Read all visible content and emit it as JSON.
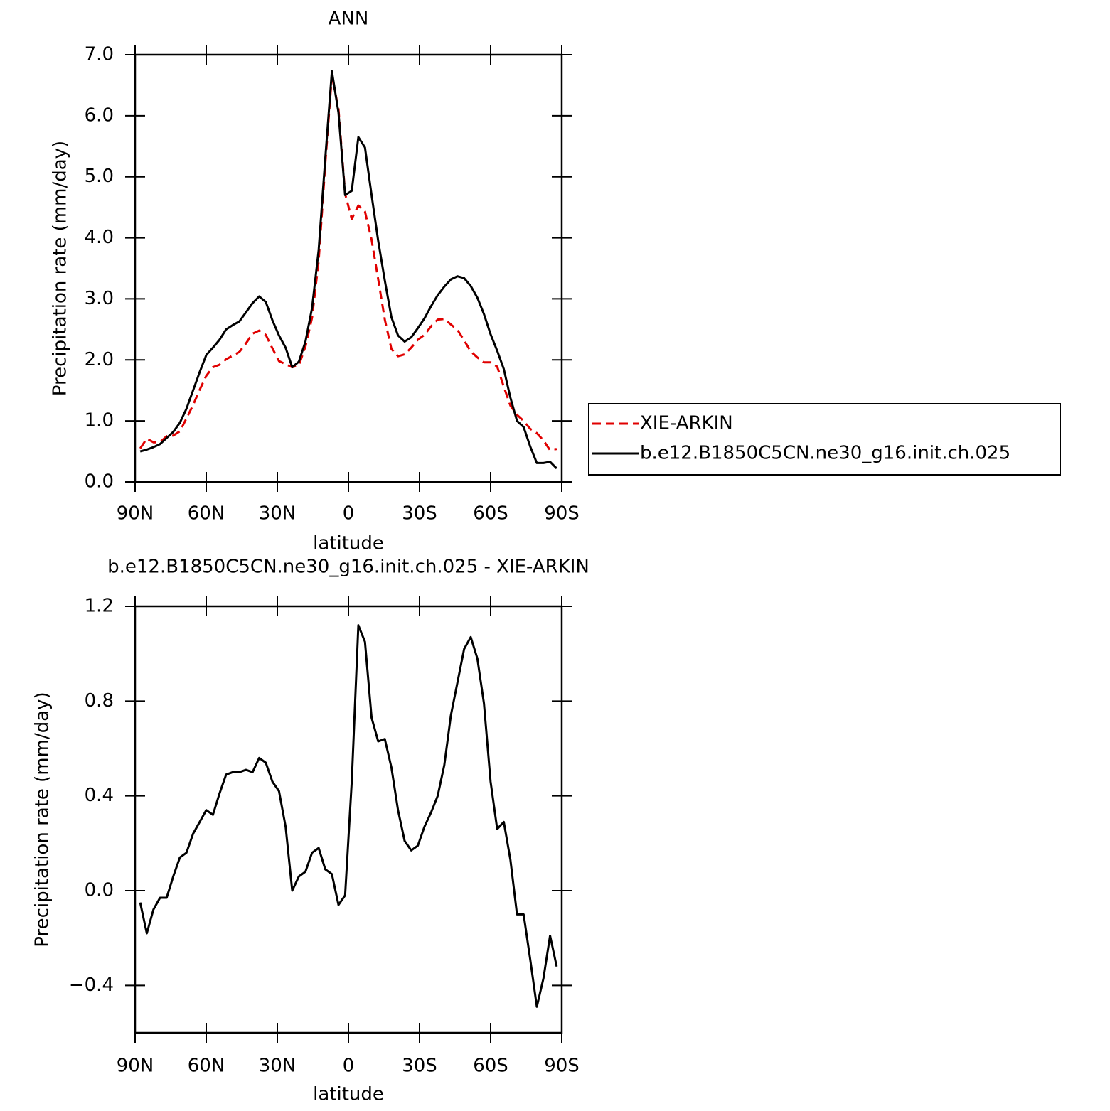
{
  "chart_data": [
    {
      "type": "line",
      "title": "ANN",
      "xlabel": "latitude",
      "ylabel": "Precipitation rate (mm/day)",
      "x": [
        87.86,
        85.07,
        82.28,
        79.49,
        76.7,
        73.91,
        71.12,
        68.34,
        65.55,
        62.76,
        59.97,
        57.18,
        54.39,
        51.6,
        48.81,
        46.02,
        43.23,
        40.45,
        37.66,
        34.87,
        32.08,
        29.29,
        26.5,
        23.71,
        20.92,
        18.13,
        15.35,
        12.56,
        9.77,
        6.98,
        4.19,
        1.4,
        -1.4,
        -4.19,
        -6.98,
        -9.77,
        -12.56,
        -15.35,
        -18.13,
        -20.92,
        -23.71,
        -26.5,
        -29.29,
        -32.08,
        -34.87,
        -37.66,
        -40.45,
        -43.23,
        -46.02,
        -48.81,
        -51.6,
        -54.39,
        -57.18,
        -59.97,
        -62.76,
        -65.55,
        -68.34,
        -71.12,
        -73.91,
        -76.7,
        -79.49,
        -82.28,
        -85.07,
        -87.86
      ],
      "series": [
        {
          "name": "XIE-ARKIN",
          "color": "#e00000",
          "linestyle": "dashed",
          "values": [
            0.55,
            0.71,
            0.65,
            0.65,
            0.75,
            0.76,
            0.83,
            1.04,
            1.26,
            1.51,
            1.74,
            1.88,
            1.92,
            2.01,
            2.07,
            2.13,
            2.27,
            2.43,
            2.48,
            2.41,
            2.19,
            1.98,
            1.93,
            1.88,
            1.91,
            2.22,
            2.69,
            3.62,
            5.21,
            6.66,
            6.11,
            4.72,
            4.31,
            4.53,
            4.43,
            3.97,
            3.32,
            2.66,
            2.18,
            2.06,
            2.09,
            2.2,
            2.33,
            2.41,
            2.55,
            2.66,
            2.67,
            2.58,
            2.49,
            2.32,
            2.14,
            2.04,
            1.96,
            1.96,
            1.89,
            1.56,
            1.25,
            1.1,
            1.0,
            0.87,
            0.8,
            0.68,
            0.52,
            0.54
          ]
        },
        {
          "name": "b.e12.B1850C5CN.ne30_g16.init.ch.025",
          "color": "#000000",
          "linestyle": "solid",
          "values": [
            0.5,
            0.53,
            0.57,
            0.62,
            0.72,
            0.82,
            0.97,
            1.2,
            1.5,
            1.8,
            2.08,
            2.2,
            2.33,
            2.5,
            2.57,
            2.63,
            2.78,
            2.93,
            3.04,
            2.95,
            2.65,
            2.4,
            2.2,
            1.88,
            1.97,
            2.3,
            2.85,
            3.8,
            5.3,
            6.73,
            6.05,
            4.7,
            4.77,
            5.65,
            5.48,
            4.7,
            3.95,
            3.3,
            2.7,
            2.4,
            2.3,
            2.37,
            2.52,
            2.68,
            2.88,
            3.06,
            3.2,
            3.32,
            3.37,
            3.34,
            3.21,
            3.02,
            2.75,
            2.42,
            2.15,
            1.85,
            1.38,
            1.0,
            0.9,
            0.58,
            0.31,
            0.31,
            0.33,
            0.22
          ]
        }
      ],
      "xlim": [
        90,
        -90
      ],
      "xticks": [
        {
          "value": 90,
          "label": "90N"
        },
        {
          "value": 60,
          "label": "60N"
        },
        {
          "value": 30,
          "label": "30N"
        },
        0,
        {
          "value": -30,
          "label": "30S"
        },
        {
          "value": -60,
          "label": "60S"
        },
        {
          "value": -90,
          "label": "90S"
        }
      ],
      "ylim": [
        0,
        7
      ],
      "yticks": [
        {
          "value": 0,
          "label": "0.0"
        },
        {
          "value": 1,
          "label": "1.0"
        },
        {
          "value": 2,
          "label": "2.0"
        },
        {
          "value": 3,
          "label": "3.0"
        },
        {
          "value": 4,
          "label": "4.0"
        },
        {
          "value": 5,
          "label": "5.0"
        },
        {
          "value": 6,
          "label": "6.0"
        },
        {
          "value": 7,
          "label": "7.0"
        }
      ],
      "legend": "right"
    },
    {
      "type": "line",
      "title": "b.e12.B1850C5CN.ne30_g16.init.ch.025 - XIE-ARKIN",
      "xlabel": "latitude",
      "ylabel": "Precipitation rate (mm/day)",
      "x": [
        87.86,
        85.07,
        82.28,
        79.49,
        76.7,
        73.91,
        71.12,
        68.34,
        65.55,
        62.76,
        59.97,
        57.18,
        54.39,
        51.6,
        48.81,
        46.02,
        43.23,
        40.45,
        37.66,
        34.87,
        32.08,
        29.29,
        26.5,
        23.71,
        20.92,
        18.13,
        15.35,
        12.56,
        9.77,
        6.98,
        4.19,
        1.4,
        -1.4,
        -4.19,
        -6.98,
        -9.77,
        -12.56,
        -15.35,
        -18.13,
        -20.92,
        -23.71,
        -26.5,
        -29.29,
        -32.08,
        -34.87,
        -37.66,
        -40.45,
        -43.23,
        -46.02,
        -48.81,
        -51.6,
        -54.39,
        -57.18,
        -59.97,
        -62.76,
        -65.55,
        -68.34,
        -71.12,
        -73.91,
        -76.7,
        -79.49,
        -82.28,
        -85.07,
        -87.86
      ],
      "color": "#000000",
      "values": [
        -0.05,
        -0.18,
        -0.08,
        -0.03,
        -0.03,
        0.06,
        0.14,
        0.16,
        0.24,
        0.29,
        0.34,
        0.32,
        0.41,
        0.49,
        0.5,
        0.5,
        0.51,
        0.5,
        0.56,
        0.54,
        0.46,
        0.42,
        0.27,
        0.0,
        0.06,
        0.08,
        0.16,
        0.18,
        0.09,
        0.07,
        -0.06,
        -0.02,
        0.46,
        1.12,
        1.05,
        0.73,
        0.63,
        0.64,
        0.52,
        0.34,
        0.21,
        0.17,
        0.19,
        0.27,
        0.33,
        0.4,
        0.53,
        0.74,
        0.88,
        1.02,
        1.07,
        0.98,
        0.79,
        0.46,
        0.26,
        0.29,
        0.13,
        -0.1,
        -0.1,
        -0.29,
        -0.49,
        -0.37,
        -0.19,
        -0.32
      ],
      "xlim": [
        90,
        -90
      ],
      "xticks": [
        {
          "value": 90,
          "label": "90N"
        },
        {
          "value": 60,
          "label": "60N"
        },
        {
          "value": 30,
          "label": "30N"
        },
        0,
        {
          "value": -30,
          "label": "30S"
        },
        {
          "value": -60,
          "label": "60S"
        },
        {
          "value": -90,
          "label": "90S"
        }
      ],
      "ylim": [
        -0.6,
        1.2
      ],
      "yticks": [
        {
          "value": -0.4,
          "label": "−0.4"
        },
        {
          "value": 0,
          "label": "0.0"
        },
        0.4,
        0.8,
        1.2
      ]
    }
  ]
}
